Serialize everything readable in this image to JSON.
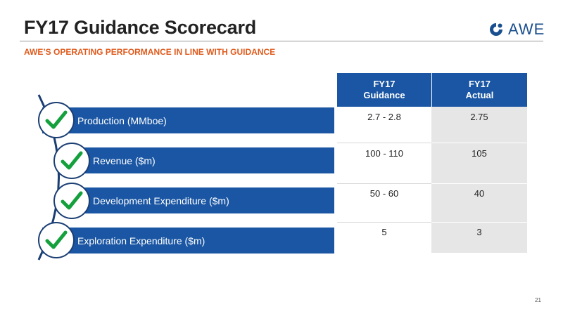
{
  "header": {
    "title": "FY17 Guidance Scorecard",
    "subtitle": "AWE’S OPERATING PERFORMANCE IN LINE WITH GUIDANCE",
    "logo_text": "AWE"
  },
  "colors": {
    "brand_blue": "#1a56a3",
    "accent_orange": "#e05a1c",
    "check_green": "#14a03c",
    "actual_column_bg": "#e6e6e6"
  },
  "scorecard": {
    "column_headers": {
      "guidance": [
        "FY17",
        "Guidance"
      ],
      "actual": [
        "FY17",
        "Actual"
      ]
    },
    "rows": [
      {
        "label": "Production (MMboe)",
        "guidance": "2.7 -  2.8",
        "actual": "2.75",
        "status_icon": "check-icon"
      },
      {
        "label": "Revenue ($m)",
        "guidance": "100 -  110",
        "actual": "105",
        "status_icon": "check-icon"
      },
      {
        "label": "Development Expenditure ($m)",
        "guidance": "50 - 60",
        "actual": "40",
        "status_icon": "check-icon"
      },
      {
        "label": "Exploration Expenditure ($m)",
        "guidance": "5",
        "actual": "3",
        "status_icon": "check-icon"
      }
    ]
  },
  "footer": {
    "page_number": "21"
  }
}
